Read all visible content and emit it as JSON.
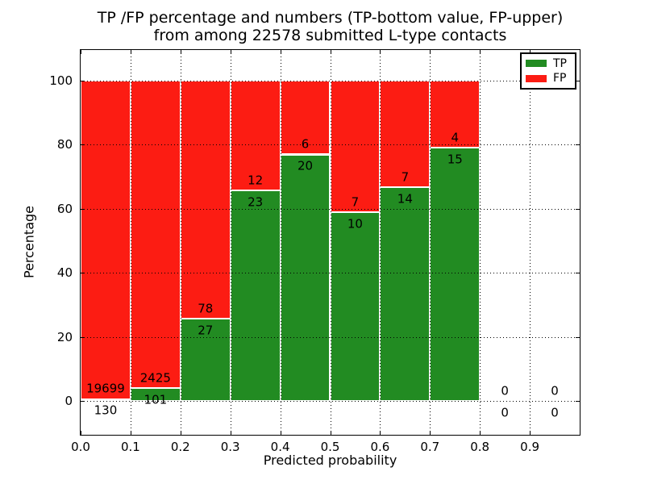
{
  "figure": {
    "title_line1": "TP /FP percentage and numbers (TP-bottom value, FP-upper)",
    "title_line2": "from among 22578 submitted L-type contacts",
    "xlabel": "Predicted probability",
    "ylabel": "Percentage"
  },
  "chart_data": {
    "type": "bar",
    "stacked": true,
    "title": "TP /FP percentage and numbers (TP-bottom value, FP-upper) from among 22578 submitted L-type contacts",
    "xlabel": "Predicted probability",
    "ylabel": "Percentage",
    "total_submitted": 22578,
    "xlim": [
      0.0,
      1.0
    ],
    "ylim": [
      -10.5,
      109.5
    ],
    "x_ticks": [
      "0.0",
      "0.1",
      "0.2",
      "0.3",
      "0.4",
      "0.5",
      "0.6",
      "0.7",
      "0.8",
      "0.9"
    ],
    "y_ticks": [
      0,
      20,
      40,
      60,
      80,
      100
    ],
    "grid": true,
    "grid_style": "dotted",
    "colors": {
      "tp": "#228b22",
      "fp": "#fc1c13",
      "bar_edge": "#ffffff",
      "text": "#000000"
    },
    "legend": {
      "position": "upper right",
      "entries": [
        {
          "label": "TP",
          "color": "#228b22"
        },
        {
          "label": "FP",
          "color": "#fc1c13"
        }
      ]
    },
    "bins": [
      {
        "x0": 0.0,
        "x1": 0.1,
        "tp": 130,
        "fp": 19699,
        "tp_pct": 0.66,
        "fp_pct": 99.34
      },
      {
        "x0": 0.1,
        "x1": 0.2,
        "tp": 101,
        "fp": 2425,
        "tp_pct": 4.0,
        "fp_pct": 96.0
      },
      {
        "x0": 0.2,
        "x1": 0.3,
        "tp": 27,
        "fp": 78,
        "tp_pct": 25.71,
        "fp_pct": 74.29
      },
      {
        "x0": 0.3,
        "x1": 0.4,
        "tp": 23,
        "fp": 12,
        "tp_pct": 65.71,
        "fp_pct": 34.29
      },
      {
        "x0": 0.4,
        "x1": 0.5,
        "tp": 20,
        "fp": 6,
        "tp_pct": 76.92,
        "fp_pct": 23.08
      },
      {
        "x0": 0.5,
        "x1": 0.6,
        "tp": 10,
        "fp": 7,
        "tp_pct": 58.82,
        "fp_pct": 41.18
      },
      {
        "x0": 0.6,
        "x1": 0.7,
        "tp": 14,
        "fp": 7,
        "tp_pct": 66.67,
        "fp_pct": 33.33
      },
      {
        "x0": 0.7,
        "x1": 0.8,
        "tp": 15,
        "fp": 4,
        "tp_pct": 78.95,
        "fp_pct": 21.05
      },
      {
        "x0": 0.8,
        "x1": 0.9,
        "tp": 0,
        "fp": 0,
        "tp_pct": 0,
        "fp_pct": 0
      },
      {
        "x0": 0.9,
        "x1": 1.0,
        "tp": 0,
        "fp": 0,
        "tp_pct": 0,
        "fp_pct": 0
      }
    ],
    "label_offsets_pct": {
      "fp": 3.1,
      "tp": -3.7
    }
  }
}
